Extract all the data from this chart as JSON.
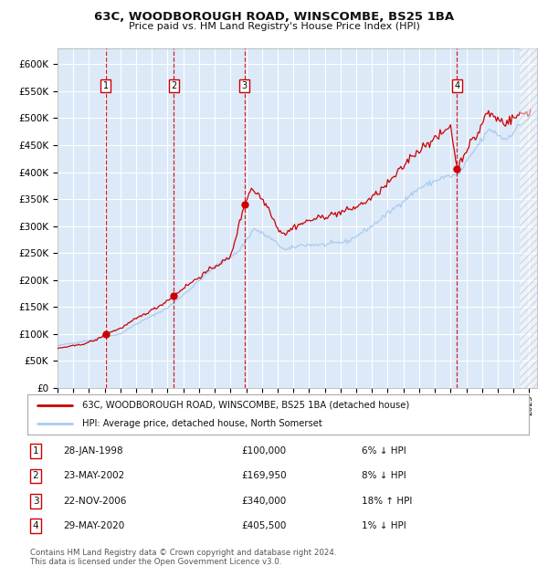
{
  "title1": "63C, WOODBOROUGH ROAD, WINSCOMBE, BS25 1BA",
  "title2": "Price paid vs. HM Land Registry's House Price Index (HPI)",
  "legend_line1": "63C, WOODBOROUGH ROAD, WINSCOMBE, BS25 1BA (detached house)",
  "legend_line2": "HPI: Average price, detached house, North Somerset",
  "footer1": "Contains HM Land Registry data © Crown copyright and database right 2024.",
  "footer2": "This data is licensed under the Open Government Licence v3.0.",
  "transactions": [
    {
      "num": 1,
      "date": "28-JAN-1998",
      "price": 100000,
      "price_str": "£100,000",
      "pct": "6%",
      "dir": "↓",
      "year_x": 1998.07
    },
    {
      "num": 2,
      "date": "23-MAY-2002",
      "price": 169950,
      "price_str": "£169,950",
      "pct": "8%",
      "dir": "↓",
      "year_x": 2002.39
    },
    {
      "num": 3,
      "date": "22-NOV-2006",
      "price": 340000,
      "price_str": "£340,000",
      "pct": "18%",
      "dir": "↑",
      "year_x": 2006.89
    },
    {
      "num": 4,
      "date": "29-MAY-2020",
      "price": 405500,
      "price_str": "£405,500",
      "pct": "1%",
      "dir": "↓",
      "year_x": 2020.41
    }
  ],
  "ylim": [
    0,
    630000
  ],
  "yticks": [
    0,
    50000,
    100000,
    150000,
    200000,
    250000,
    300000,
    350000,
    400000,
    450000,
    500000,
    550000,
    600000
  ],
  "xlim_start": 1995.0,
  "xlim_end": 2025.5,
  "background_color": "#dce9f8",
  "grid_color": "#ffffff",
  "red_line_color": "#cc0000",
  "blue_line_color": "#aaccee",
  "transaction_color": "#cc0000",
  "vline_color": "#cc0000",
  "hpi_anchors": [
    [
      1995.0,
      78000
    ],
    [
      1997.0,
      88000
    ],
    [
      1999.0,
      100000
    ],
    [
      2000.0,
      118000
    ],
    [
      2002.0,
      148000
    ],
    [
      2003.5,
      185000
    ],
    [
      2005.0,
      225000
    ],
    [
      2006.5,
      252000
    ],
    [
      2007.5,
      295000
    ],
    [
      2008.5,
      278000
    ],
    [
      2009.5,
      255000
    ],
    [
      2010.5,
      265000
    ],
    [
      2012.0,
      265000
    ],
    [
      2013.5,
      272000
    ],
    [
      2015.0,
      300000
    ],
    [
      2016.5,
      335000
    ],
    [
      2018.0,
      370000
    ],
    [
      2019.5,
      390000
    ],
    [
      2020.5,
      395000
    ],
    [
      2021.5,
      440000
    ],
    [
      2022.5,
      480000
    ],
    [
      2023.0,
      470000
    ],
    [
      2023.5,
      460000
    ],
    [
      2024.5,
      490000
    ],
    [
      2025.0,
      500000
    ]
  ],
  "prop_anchors": [
    [
      1995.0,
      73000
    ],
    [
      1996.5,
      80000
    ],
    [
      1997.5,
      89000
    ],
    [
      1998.07,
      100000
    ],
    [
      1999.0,
      110000
    ],
    [
      2000.0,
      128000
    ],
    [
      2001.5,
      152000
    ],
    [
      2002.39,
      169950
    ],
    [
      2003.0,
      185000
    ],
    [
      2004.0,
      205000
    ],
    [
      2005.0,
      225000
    ],
    [
      2006.0,
      242000
    ],
    [
      2006.89,
      340000
    ],
    [
      2007.3,
      370000
    ],
    [
      2007.8,
      358000
    ],
    [
      2008.5,
      330000
    ],
    [
      2009.0,
      295000
    ],
    [
      2009.5,
      285000
    ],
    [
      2010.0,
      298000
    ],
    [
      2011.0,
      310000
    ],
    [
      2012.0,
      318000
    ],
    [
      2013.0,
      325000
    ],
    [
      2014.0,
      335000
    ],
    [
      2015.0,
      352000
    ],
    [
      2016.0,
      378000
    ],
    [
      2017.0,
      410000
    ],
    [
      2017.5,
      430000
    ],
    [
      2018.0,
      440000
    ],
    [
      2018.5,
      455000
    ],
    [
      2019.0,
      460000
    ],
    [
      2019.5,
      472000
    ],
    [
      2020.0,
      488000
    ],
    [
      2020.41,
      405500
    ],
    [
      2020.8,
      430000
    ],
    [
      2021.2,
      452000
    ],
    [
      2021.7,
      468000
    ],
    [
      2022.0,
      490000
    ],
    [
      2022.3,
      510000
    ],
    [
      2022.7,
      505000
    ],
    [
      2023.0,
      498000
    ],
    [
      2023.5,
      492000
    ],
    [
      2024.0,
      500000
    ],
    [
      2024.5,
      508000
    ],
    [
      2025.0,
      512000
    ]
  ]
}
